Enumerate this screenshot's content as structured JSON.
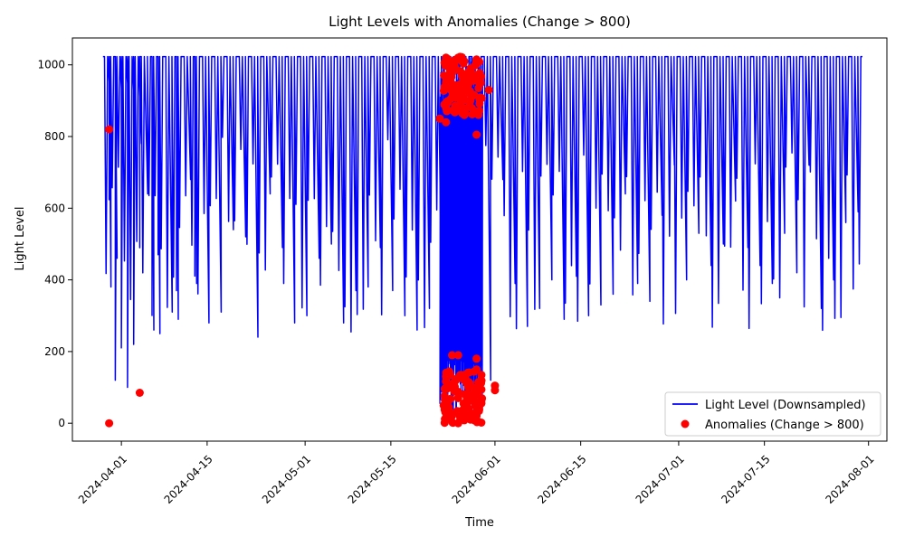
{
  "chart_data": {
    "type": "line",
    "title": "Light Levels with Anomalies (Change > 800)",
    "xlabel": "Time",
    "ylabel": "Light Level",
    "xlim": [
      "2024-03-24",
      "2024-08-04"
    ],
    "ylim": [
      -50,
      1075
    ],
    "x_ticks": [
      "2024-04-01",
      "2024-04-15",
      "2024-05-01",
      "2024-05-15",
      "2024-06-01",
      "2024-06-15",
      "2024-07-01",
      "2024-07-15",
      "2024-08-01"
    ],
    "y_ticks": [
      0,
      200,
      400,
      600,
      800,
      1000
    ],
    "grid": false,
    "legend_position": "lower-right",
    "series": [
      {
        "name": "Light Level (Downsampled)",
        "color": "#0000ff",
        "style": "line",
        "x_range": [
          "2024-03-29",
          "2024-07-31"
        ],
        "high_level": 1023,
        "notes_range": [
          100,
          1023
        ],
        "sample_points": [
          [
            "2024-03-29",
            1023
          ],
          [
            "2024-03-30",
            870
          ],
          [
            "2024-03-30",
            1023
          ],
          [
            "2024-03-30",
            380
          ],
          [
            "2024-03-31",
            1023
          ],
          [
            "2024-03-31",
            460
          ],
          [
            "2024-03-31",
            120
          ],
          [
            "2024-04-01",
            830
          ],
          [
            "2024-04-01",
            210
          ],
          [
            "2024-04-02",
            860
          ],
          [
            "2024-04-02",
            100
          ],
          [
            "2024-04-03",
            820
          ],
          [
            "2024-04-03",
            220
          ],
          [
            "2024-04-04",
            780
          ],
          [
            "2024-04-04",
            1023
          ],
          [
            "2024-04-05",
            640
          ],
          [
            "2024-04-06",
            1023
          ],
          [
            "2024-04-06",
            260
          ],
          [
            "2024-04-07",
            1023
          ],
          [
            "2024-04-07",
            250
          ],
          [
            "2024-04-08",
            1023
          ],
          [
            "2024-04-09",
            310
          ],
          [
            "2024-04-10",
            1023
          ],
          [
            "2024-04-10",
            290
          ],
          [
            "2024-04-11",
            1023
          ],
          [
            "2024-04-12",
            680
          ],
          [
            "2024-04-13",
            1023
          ],
          [
            "2024-04-13",
            390
          ],
          [
            "2024-04-14",
            1023
          ],
          [
            "2024-04-15",
            280
          ],
          [
            "2024-04-16",
            1023
          ],
          [
            "2024-04-17",
            310
          ],
          [
            "2024-04-18",
            1023
          ],
          [
            "2024-04-19",
            540
          ],
          [
            "2024-04-20",
            1023
          ],
          [
            "2024-04-21",
            520
          ],
          [
            "2024-04-22",
            1023
          ],
          [
            "2024-04-23",
            240
          ],
          [
            "2024-04-24",
            1023
          ],
          [
            "2024-04-25",
            640
          ],
          [
            "2024-04-26",
            1023
          ],
          [
            "2024-04-27",
            490
          ],
          [
            "2024-04-28",
            1023
          ],
          [
            "2024-04-29",
            280
          ],
          [
            "2024-04-30",
            1023
          ],
          [
            "2024-05-01",
            300
          ],
          [
            "2024-05-02",
            1023
          ],
          [
            "2024-05-03",
            460
          ],
          [
            "2024-05-04",
            1023
          ],
          [
            "2024-05-05",
            500
          ],
          [
            "2024-05-06",
            1023
          ],
          [
            "2024-05-07",
            280
          ],
          [
            "2024-05-08",
            1023
          ],
          [
            "2024-05-09",
            370
          ],
          [
            "2024-05-10",
            1023
          ],
          [
            "2024-05-11",
            380
          ],
          [
            "2024-05-12",
            1023
          ],
          [
            "2024-05-13",
            490
          ],
          [
            "2024-05-14",
            1023
          ],
          [
            "2024-05-15",
            370
          ],
          [
            "2024-05-16",
            1023
          ],
          [
            "2024-05-17",
            300
          ],
          [
            "2024-05-18",
            1023
          ],
          [
            "2024-05-19",
            260
          ],
          [
            "2024-05-20",
            1023
          ],
          [
            "2024-05-21",
            320
          ],
          [
            "2024-05-22",
            1023
          ],
          [
            "2024-05-23",
            350
          ],
          [
            "2024-05-24",
            1023
          ],
          [
            "2024-05-25",
            440
          ],
          [
            "2024-05-26",
            1023
          ],
          [
            "2024-05-27",
            490
          ],
          [
            "2024-05-28",
            1023
          ],
          [
            "2024-05-29",
            280
          ],
          [
            "2024-05-30",
            1023
          ],
          [
            "2024-05-31",
            120
          ],
          [
            "2024-06-01",
            1023
          ],
          [
            "2024-06-02",
            680
          ],
          [
            "2024-06-03",
            1023
          ],
          [
            "2024-06-04",
            390
          ],
          [
            "2024-06-05",
            1023
          ],
          [
            "2024-06-06",
            270
          ],
          [
            "2024-06-07",
            1023
          ],
          [
            "2024-06-08",
            320
          ],
          [
            "2024-06-09",
            1023
          ],
          [
            "2024-06-10",
            400
          ],
          [
            "2024-06-11",
            1023
          ],
          [
            "2024-06-12",
            290
          ],
          [
            "2024-06-13",
            1023
          ],
          [
            "2024-06-14",
            410
          ],
          [
            "2024-06-15",
            1023
          ],
          [
            "2024-06-16",
            300
          ],
          [
            "2024-06-17",
            1023
          ],
          [
            "2024-06-18",
            330
          ],
          [
            "2024-06-19",
            1023
          ],
          [
            "2024-06-20",
            360
          ],
          [
            "2024-06-21",
            1023
          ],
          [
            "2024-06-22",
            640
          ],
          [
            "2024-06-23",
            1023
          ],
          [
            "2024-06-24",
            390
          ],
          [
            "2024-06-25",
            1023
          ],
          [
            "2024-06-26",
            340
          ],
          [
            "2024-06-27",
            1023
          ],
          [
            "2024-06-28",
            580
          ],
          [
            "2024-06-29",
            1023
          ],
          [
            "2024-06-30",
            720
          ],
          [
            "2024-07-01",
            1023
          ],
          [
            "2024-07-02",
            400
          ],
          [
            "2024-07-03",
            1023
          ],
          [
            "2024-07-04",
            530
          ],
          [
            "2024-07-05",
            1023
          ],
          [
            "2024-07-06",
            440
          ],
          [
            "2024-07-07",
            1023
          ],
          [
            "2024-07-08",
            500
          ],
          [
            "2024-07-09",
            1023
          ],
          [
            "2024-07-10",
            620
          ],
          [
            "2024-07-11",
            1023
          ],
          [
            "2024-07-12",
            490
          ],
          [
            "2024-07-13",
            1023
          ],
          [
            "2024-07-14",
            440
          ],
          [
            "2024-07-15",
            1023
          ],
          [
            "2024-07-16",
            390
          ],
          [
            "2024-07-17",
            1023
          ],
          [
            "2024-07-18",
            530
          ],
          [
            "2024-07-19",
            1023
          ],
          [
            "2024-07-20",
            420
          ],
          [
            "2024-07-21",
            1023
          ],
          [
            "2024-07-22",
            720
          ],
          [
            "2024-07-23",
            1023
          ],
          [
            "2024-07-24",
            320
          ],
          [
            "2024-07-25",
            1023
          ],
          [
            "2024-07-26",
            400
          ],
          [
            "2024-07-27",
            1023
          ],
          [
            "2024-07-28",
            560
          ],
          [
            "2024-07-29",
            1023
          ],
          [
            "2024-07-30",
            590
          ],
          [
            "2024-07-31",
            1023
          ]
        ]
      },
      {
        "name": "Anomalies (Change > 800)",
        "color": "#ff0000",
        "style": "scatter",
        "points": [
          [
            "2024-03-30",
            820
          ],
          [
            "2024-03-30",
            0
          ],
          [
            "2024-04-04",
            85
          ],
          [
            "2024-05-23",
            850
          ],
          [
            "2024-05-24",
            1020
          ],
          [
            "2024-05-24",
            130
          ],
          [
            "2024-05-24",
            60
          ],
          [
            "2024-05-24",
            10
          ],
          [
            "2024-05-24",
            950
          ],
          [
            "2024-05-24",
            840
          ],
          [
            "2024-05-25",
            980
          ],
          [
            "2024-05-25",
            190
          ],
          [
            "2024-05-25",
            100
          ],
          [
            "2024-05-25",
            20
          ],
          [
            "2024-05-25",
            910
          ],
          [
            "2024-05-26",
            1020
          ],
          [
            "2024-05-26",
            190
          ],
          [
            "2024-05-26",
            70
          ],
          [
            "2024-05-26",
            0
          ],
          [
            "2024-05-26",
            880
          ],
          [
            "2024-05-27",
            1010
          ],
          [
            "2024-05-27",
            120
          ],
          [
            "2024-05-27",
            40
          ],
          [
            "2024-05-27",
            930
          ],
          [
            "2024-05-27",
            860
          ],
          [
            "2024-05-28",
            990
          ],
          [
            "2024-05-28",
            80
          ],
          [
            "2024-05-28",
            10
          ],
          [
            "2024-05-28",
            900
          ],
          [
            "2024-05-29",
            1015
          ],
          [
            "2024-05-29",
            150
          ],
          [
            "2024-05-29",
            30
          ],
          [
            "2024-05-29",
            870
          ],
          [
            "2024-05-29",
            805
          ],
          [
            "2024-05-29",
            180
          ],
          [
            "2024-05-31",
            930
          ],
          [
            "2024-06-01",
            105
          ],
          [
            "2024-06-01",
            92
          ]
        ]
      }
    ]
  }
}
